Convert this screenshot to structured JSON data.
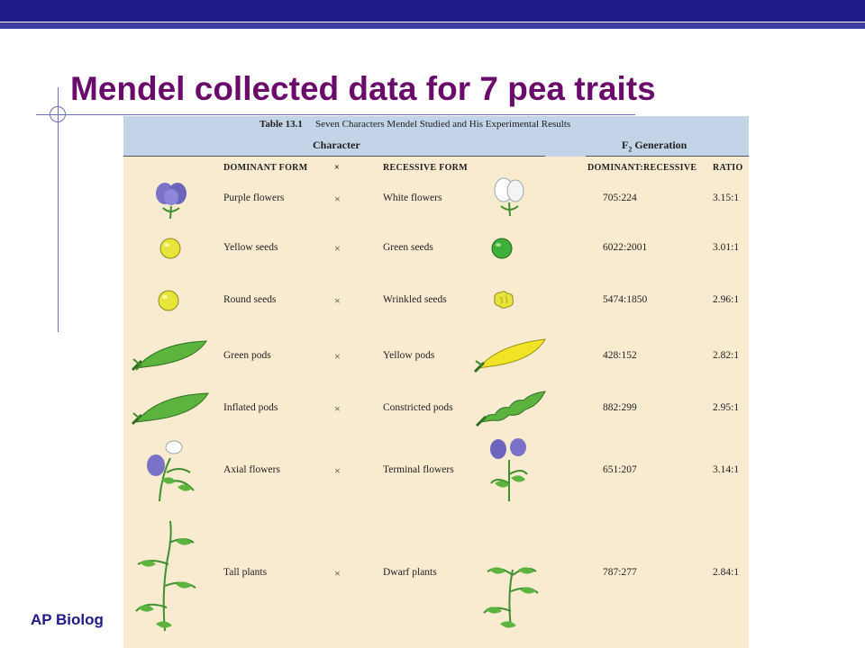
{
  "slide": {
    "title": "Mendel collected data for 7 pea traits",
    "footer": "AP Biolog"
  },
  "table": {
    "number": "Table 13.1",
    "caption": "Seven Characters Mendel Studied and His Experimental Results",
    "group_character": "Character",
    "group_f2_prefix": "F",
    "group_f2_sub": "2",
    "group_f2_suffix": " Generation",
    "col_dominant": "DOMINANT FORM",
    "col_cross": "×",
    "col_recessive": "RECESSIVE FORM",
    "col_dom_rec": "DOMINANT:RECESSIVE",
    "col_ratio": "RATIO",
    "rows": [
      {
        "dominant": "Purple flowers",
        "cross": "×",
        "recessive": "White flowers",
        "counts": "705:224",
        "ratio": "3.15:1",
        "dom_icon": "purple-flower-icon",
        "rec_icon": "white-flower-icon"
      },
      {
        "dominant": "Yellow seeds",
        "cross": "×",
        "recessive": "Green seeds",
        "counts": "6022:2001",
        "ratio": "3.01:1",
        "dom_icon": "yellow-seed-icon",
        "rec_icon": "green-seed-icon"
      },
      {
        "dominant": "Round seeds",
        "cross": "×",
        "recessive": "Wrinkled seeds",
        "counts": "5474:1850",
        "ratio": "2.96:1",
        "dom_icon": "round-seed-icon",
        "rec_icon": "wrinkled-seed-icon"
      },
      {
        "dominant": "Green pods",
        "cross": "×",
        "recessive": "Yellow pods",
        "counts": "428:152",
        "ratio": "2.82:1",
        "dom_icon": "green-pod-icon",
        "rec_icon": "yellow-pod-icon"
      },
      {
        "dominant": "Inflated pods",
        "cross": "×",
        "recessive": "Constricted pods",
        "counts": "882:299",
        "ratio": "2.95:1",
        "dom_icon": "inflated-pod-icon",
        "rec_icon": "constricted-pod-icon"
      },
      {
        "dominant": "Axial flowers",
        "cross": "×",
        "recessive": "Terminal flowers",
        "counts": "651:207",
        "ratio": "3.14:1",
        "dom_icon": "axial-flower-icon",
        "rec_icon": "terminal-flower-icon"
      },
      {
        "dominant": "Tall plants",
        "cross": "×",
        "recessive": "Dwarf plants",
        "counts": "787:277",
        "ratio": "2.84:1",
        "dom_icon": "tall-plant-icon",
        "rec_icon": "dwarf-plant-icon"
      }
    ]
  },
  "colors": {
    "title": "#6a0a6a",
    "bar": "#1e1a8a",
    "panel": "#f9ebd0",
    "header": "#c3d3e8"
  }
}
